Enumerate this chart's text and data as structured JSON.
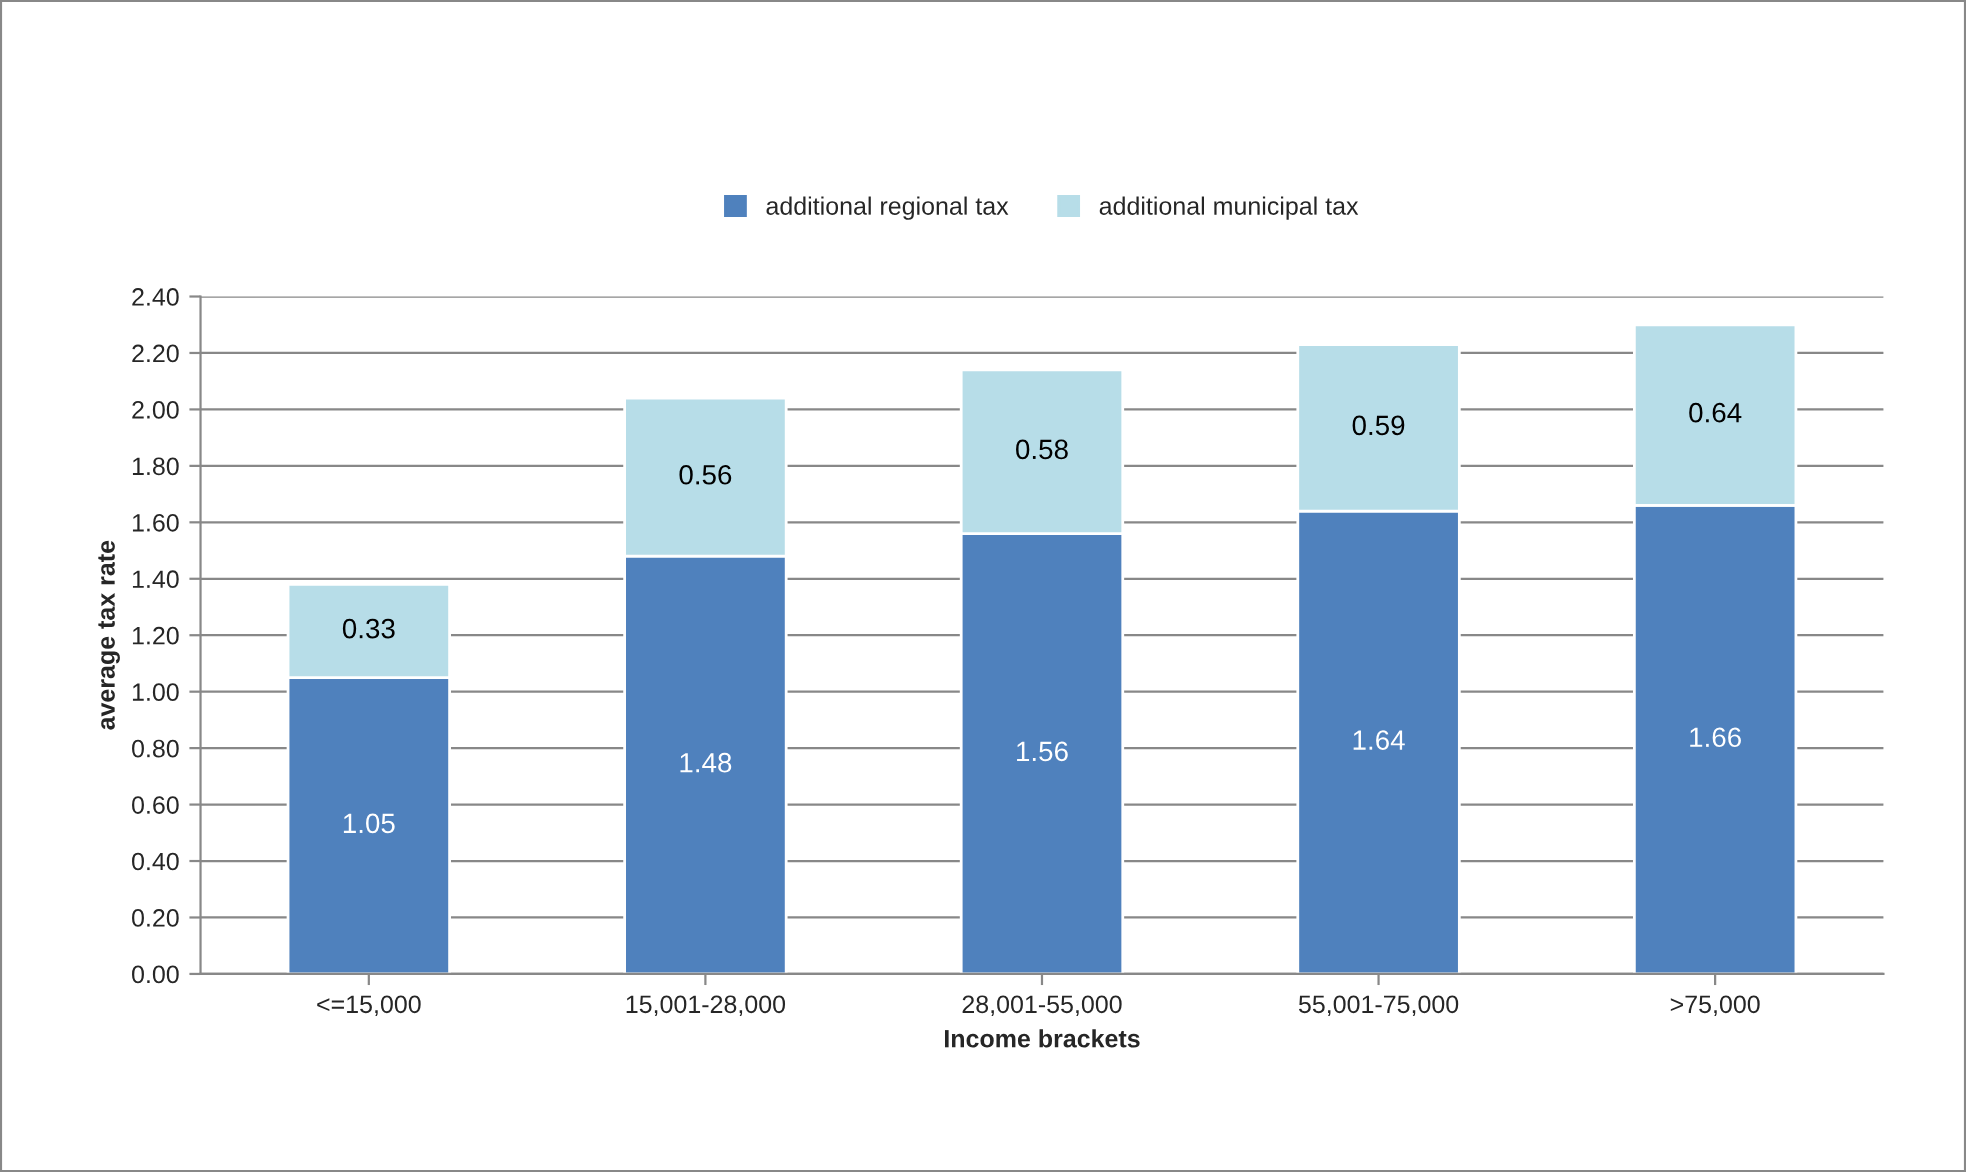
{
  "chart_data": {
    "type": "bar",
    "stacked": true,
    "xlabel": "Income brackets",
    "ylabel": "average tax rate",
    "categories": [
      "<=15,000",
      "15,001-28,000",
      "28,001-55,000",
      "55,001-75,000",
      ">75,000"
    ],
    "series": [
      {
        "name": "additional regional tax",
        "color": "#4f81bd",
        "values": [
          1.05,
          1.48,
          1.56,
          1.64,
          1.66
        ]
      },
      {
        "name": "additional municipal tax",
        "color": "#b7dde8",
        "values": [
          0.33,
          0.56,
          0.58,
          0.59,
          0.64
        ]
      }
    ],
    "ylim": [
      0,
      2.4
    ],
    "yticks": [
      {
        "value": 0,
        "label": "0.00"
      },
      {
        "value": 0.2,
        "label": "0.20"
      },
      {
        "value": 0.4,
        "label": "0.40"
      },
      {
        "value": 0.6,
        "label": "0.60"
      },
      {
        "value": 0.8,
        "label": "0.80"
      },
      {
        "value": 1.0,
        "label": "1.00"
      },
      {
        "value": 1.2,
        "label": "1.20"
      },
      {
        "value": 1.4,
        "label": "1.40"
      },
      {
        "value": 1.6,
        "label": "1.60"
      },
      {
        "value": 1.8,
        "label": "1.80"
      },
      {
        "value": 2.0,
        "label": "2.00"
      },
      {
        "value": 2.2,
        "label": "2.20"
      },
      {
        "value": 2.4,
        "label": "2.40"
      }
    ],
    "grid": "y",
    "legend": "top",
    "data_labels": true
  }
}
